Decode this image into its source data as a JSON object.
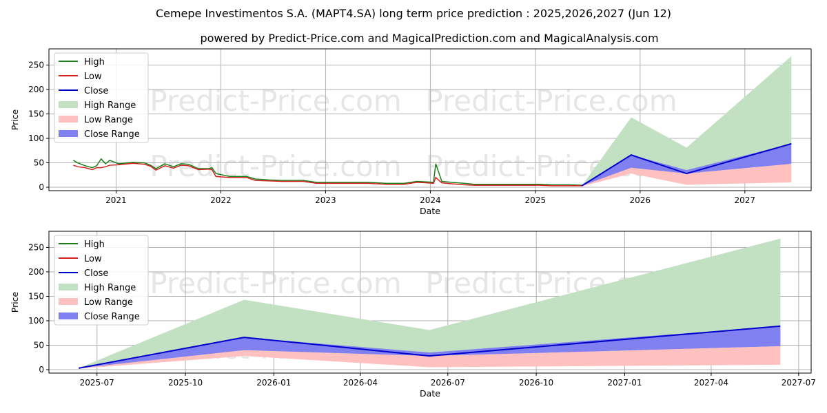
{
  "title_line1": "Cemepe Investimentos S.A. (MAPT4.SA) long term price prediction : 2025,2026,2027 (Jun 12)",
  "title_line2": "powered by Predict-Price.com and MagicalPrediction.com and MagicalAnalysis.com",
  "watermark": "Predict-Price.com",
  "colors": {
    "high": "#1a7f1a",
    "low": "#d62020",
    "close": "#0000cc",
    "high_range": "#c2e0c2",
    "low_range": "#ffc0c0",
    "close_range": "#8080f0"
  },
  "legend": [
    "High",
    "Low",
    "Close",
    "High Range",
    "Low Range",
    "Close Range"
  ],
  "chart_data": [
    {
      "type": "line",
      "xlabel": "Date",
      "ylabel": "Price",
      "xlim": [
        "2020-05-12",
        "2027-08-20"
      ],
      "ylim": [
        -7,
        283
      ],
      "x_ticks": [
        "2021-01-01",
        "2022-01-01",
        "2023-01-01",
        "2024-01-01",
        "2025-01-01",
        "2026-01-01",
        "2027-01-01"
      ],
      "x_tick_labels": [
        "2021",
        "2022",
        "2023",
        "2024",
        "2025",
        "2026",
        "2027"
      ],
      "y_ticks": [
        0,
        50,
        100,
        150,
        200,
        250
      ],
      "y_tick_labels": [
        "0",
        "50",
        "100",
        "150",
        "200",
        "250"
      ],
      "grid": true,
      "legend_position": "upper-left",
      "history": {
        "x": [
          "2020-08-05",
          "2020-08-20",
          "2020-09-15",
          "2020-10-10",
          "2020-10-25",
          "2020-11-10",
          "2020-11-25",
          "2020-12-10",
          "2021-01-10",
          "2021-03-01",
          "2021-04-10",
          "2021-05-01",
          "2021-05-20",
          "2021-06-20",
          "2021-07-20",
          "2021-08-15",
          "2021-09-10",
          "2021-10-15",
          "2021-11-20",
          "2021-12-01",
          "2021-12-15",
          "2022-02-01",
          "2022-04-01",
          "2022-05-01",
          "2022-06-15",
          "2022-08-01",
          "2022-10-15",
          "2022-12-01",
          "2023-03-01",
          "2023-06-01",
          "2023-08-01",
          "2023-10-01",
          "2023-11-15",
          "2023-12-20",
          "2024-01-12",
          "2024-01-20",
          "2024-02-10",
          "2024-03-15",
          "2024-05-01",
          "2024-06-01",
          "2024-08-01",
          "2024-10-01",
          "2024-12-01",
          "2025-01-15",
          "2025-03-01",
          "2025-05-01",
          "2025-06-12"
        ],
        "high": [
          55,
          50,
          44,
          40,
          44,
          58,
          48,
          55,
          48,
          51,
          50,
          45,
          38,
          48,
          42,
          48,
          47,
          38,
          38,
          40,
          28,
          22,
          22,
          17,
          15,
          14,
          14,
          10,
          10,
          10,
          8,
          8,
          12,
          11,
          10,
          48,
          12,
          10,
          8,
          6,
          6,
          6,
          6,
          6,
          5,
          5,
          4
        ],
        "low": [
          45,
          42,
          40,
          36,
          40,
          40,
          42,
          45,
          46,
          49,
          47,
          43,
          35,
          44,
          39,
          45,
          44,
          36,
          37,
          36,
          22,
          20,
          20,
          14,
          13,
          12,
          12,
          8,
          8,
          8,
          6,
          6,
          10,
          9,
          8,
          20,
          9,
          7,
          5,
          4,
          4,
          4,
          4,
          4,
          3,
          3,
          3
        ]
      },
      "forecast": {
        "x": [
          "2025-06-12",
          "2025-12-01",
          "2026-06-12",
          "2027-06-12"
        ],
        "close": [
          3,
          66,
          28,
          89
        ],
        "high_range": [
          [
            3,
            3
          ],
          [
            35,
            143
          ],
          [
            30,
            81
          ],
          [
            48,
            268
          ]
        ],
        "low_range": [
          [
            2,
            3
          ],
          [
            28,
            40
          ],
          [
            5,
            28
          ],
          [
            10,
            48
          ]
        ],
        "close_range": [
          [
            3,
            3
          ],
          [
            40,
            66
          ],
          [
            28,
            35
          ],
          [
            48,
            89
          ]
        ]
      }
    },
    {
      "type": "line",
      "xlabel": "Date",
      "ylabel": "Price",
      "xlim": [
        "2025-05-12",
        "2027-07-14"
      ],
      "ylim": [
        -7,
        283
      ],
      "x_ticks": [
        "2025-07-01",
        "2025-10-01",
        "2026-01-01",
        "2026-04-01",
        "2026-07-01",
        "2026-10-01",
        "2027-01-01",
        "2027-04-01",
        "2027-07-01"
      ],
      "x_tick_labels": [
        "2025-07",
        "2025-10",
        "2026-01",
        "2026-04",
        "2026-07",
        "2026-10",
        "2027-01",
        "2027-04",
        "2027-07"
      ],
      "y_ticks": [
        0,
        50,
        100,
        150,
        200,
        250
      ],
      "y_tick_labels": [
        "0",
        "50",
        "100",
        "150",
        "200",
        "250"
      ],
      "grid": true,
      "legend_position": "upper-left",
      "forecast": {
        "x": [
          "2025-06-12",
          "2025-12-01",
          "2026-06-12",
          "2027-06-12"
        ],
        "close": [
          3,
          66,
          28,
          89
        ],
        "high_range": [
          [
            3,
            3
          ],
          [
            35,
            143
          ],
          [
            30,
            81
          ],
          [
            48,
            268
          ]
        ],
        "low_range": [
          [
            2,
            3
          ],
          [
            28,
            40
          ],
          [
            5,
            28
          ],
          [
            10,
            48
          ]
        ],
        "close_range": [
          [
            3,
            3
          ],
          [
            40,
            66
          ],
          [
            28,
            35
          ],
          [
            48,
            89
          ]
        ]
      }
    }
  ]
}
